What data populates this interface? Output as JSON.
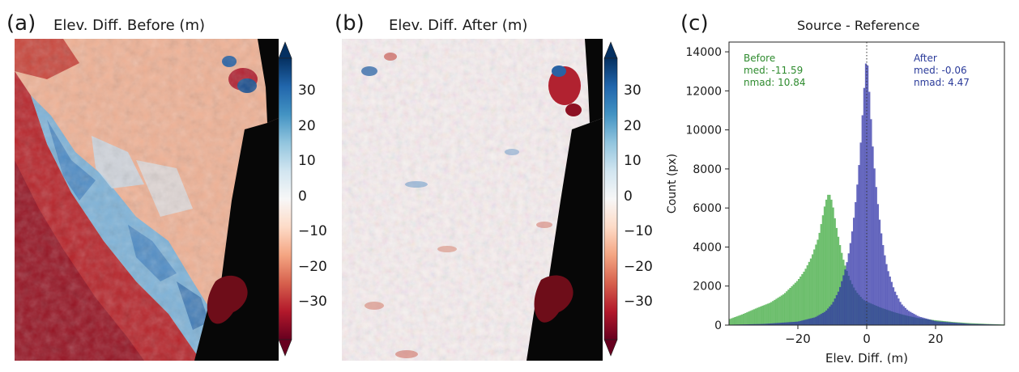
{
  "colors": {
    "dem_no_data": "#070707",
    "cmap_stops": [
      "#67001f",
      "#b2182b",
      "#d6604d",
      "#f4a582",
      "#fddbc7",
      "#f7f7f7",
      "#d1e5f0",
      "#92c5de",
      "#4393c3",
      "#2166ac",
      "#053061"
    ],
    "before_hist": "#3aa83a",
    "after_hist": "#2d2fa6",
    "before_text": "#2e8b2e",
    "after_text": "#2b3b9a"
  },
  "panels": {
    "a": {
      "letter": "(a)",
      "title": "Elev. Diff. Before (m)"
    },
    "b": {
      "letter": "(b)",
      "title": "Elev. Diff. After (m)"
    },
    "c": {
      "letter": "(c)",
      "title": "Source - Reference"
    }
  },
  "colorbar": {
    "ticks": [
      "30",
      "20",
      "10",
      "0",
      "−10",
      "−20",
      "−30"
    ],
    "tick_values": [
      30,
      20,
      10,
      0,
      -10,
      -20,
      -30
    ],
    "range": [
      -40,
      40
    ],
    "extend": "both"
  },
  "chart_data": {
    "type": "histogram",
    "title": "Source - Reference",
    "xlabel": "Elev. Diff. (m)",
    "ylabel": "Count (px)",
    "xlim": [
      -40,
      40
    ],
    "ylim": [
      0,
      14500
    ],
    "xticks": [
      -20,
      0,
      20
    ],
    "xtick_labels": [
      "−20",
      "0",
      "20"
    ],
    "yticks": [
      0,
      2000,
      4000,
      6000,
      8000,
      10000,
      12000,
      14000
    ],
    "ytick_labels": [
      "0",
      "2000",
      "4000",
      "6000",
      "8000",
      "10000",
      "12000",
      "14000"
    ],
    "zero_line": "dotted vertical at x = 0",
    "series": [
      {
        "name": "Before",
        "stats": [
          "Before",
          "med: -11.59",
          "nmad: 10.84"
        ],
        "color": "#3aa83a",
        "bin_width": 0.5,
        "x": [
          -40,
          -36,
          -32,
          -28,
          -24,
          -20,
          -18,
          -16,
          -14,
          -13,
          -12,
          -11,
          -10,
          -9,
          -8,
          -7,
          -6,
          -5,
          -4,
          -3,
          -2,
          -1,
          0,
          2,
          4,
          6,
          8,
          10,
          12,
          15,
          20,
          25,
          30,
          35,
          40
        ],
        "counts": [
          300,
          560,
          870,
          1150,
          1600,
          2300,
          2800,
          3500,
          4500,
          5400,
          6300,
          6800,
          6300,
          5200,
          4300,
          3500,
          2900,
          2400,
          2000,
          1700,
          1500,
          1300,
          1200,
          1050,
          900,
          780,
          660,
          560,
          470,
          360,
          250,
          160,
          100,
          60,
          30
        ]
      },
      {
        "name": "After",
        "stats": [
          "After",
          "med: -0.06",
          "nmad: 4.47"
        ],
        "color": "#2d2fa6",
        "bin_width": 0.5,
        "x": [
          -40,
          -30,
          -20,
          -15,
          -12,
          -10,
          -8,
          -6,
          -5,
          -4,
          -3,
          -2,
          -1.5,
          -1,
          -0.5,
          0,
          0.5,
          1,
          1.5,
          2,
          3,
          4,
          5,
          6,
          8,
          10,
          12,
          15,
          20,
          30,
          40
        ],
        "counts": [
          20,
          60,
          180,
          400,
          700,
          1100,
          1800,
          3000,
          3900,
          5100,
          6700,
          8700,
          10000,
          11500,
          12800,
          14000,
          12600,
          11300,
          9800,
          8500,
          6600,
          5000,
          3800,
          2900,
          1800,
          1100,
          750,
          450,
          200,
          60,
          20
        ]
      }
    ]
  }
}
